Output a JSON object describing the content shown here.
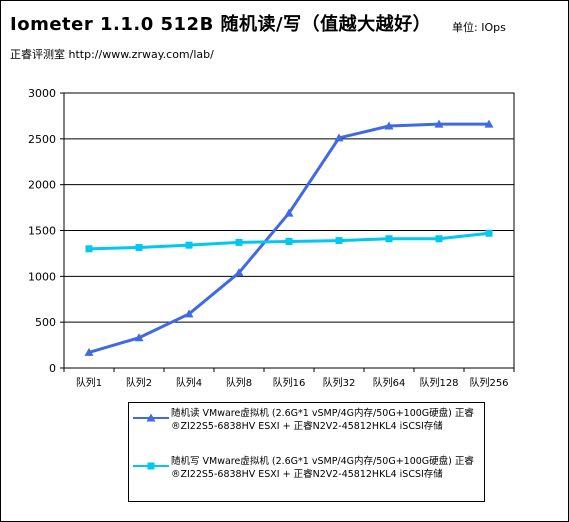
{
  "header": {
    "title": "Iometer 1.1.0 512B 随机读/写（值越大越好）",
    "unit_label": "单位: IOps",
    "source": "正睿评测室 http://www.zrway.com/lab/"
  },
  "colors": {
    "series_read": "#4169e1",
    "series_write": "#00c8f0"
  },
  "chart_data": {
    "type": "line",
    "title": "Iometer 1.1.0 512B 随机读/写（值越大越好）",
    "xlabel": "",
    "ylabel": "",
    "categories": [
      "队列1",
      "队列2",
      "队列4",
      "队列8",
      "队列16",
      "队列32",
      "队列64",
      "队列128",
      "队列256"
    ],
    "ylim": [
      0,
      3000
    ],
    "yticks": [
      "0",
      "500",
      "1000",
      "1500",
      "2000",
      "2500",
      "3000"
    ],
    "grid": true,
    "legend_position": "bottom",
    "series": [
      {
        "name": "随机读 VMware虚拟机 (2.6G*1 vSMP/4G内存/50G+100G硬盘) 正睿®ZI22S5-6838HV ESXI + 正睿N2V2-45812HKL4 iSCSI存储",
        "marker": "triangle",
        "color": "#4169e1",
        "values": [
          170,
          330,
          590,
          1040,
          1690,
          2510,
          2640,
          2660,
          2660
        ]
      },
      {
        "name": "随机写 VMware虚拟机 (2.6G*1 vSMP/4G内存/50G+100G硬盘) 正睿®ZI22S5-6838HV ESXI + 正睿N2V2-45812HKL4 iSCSI存储",
        "marker": "square",
        "color": "#00c8f0",
        "values": [
          1300,
          1315,
          1340,
          1370,
          1380,
          1390,
          1410,
          1410,
          1470
        ]
      }
    ]
  }
}
